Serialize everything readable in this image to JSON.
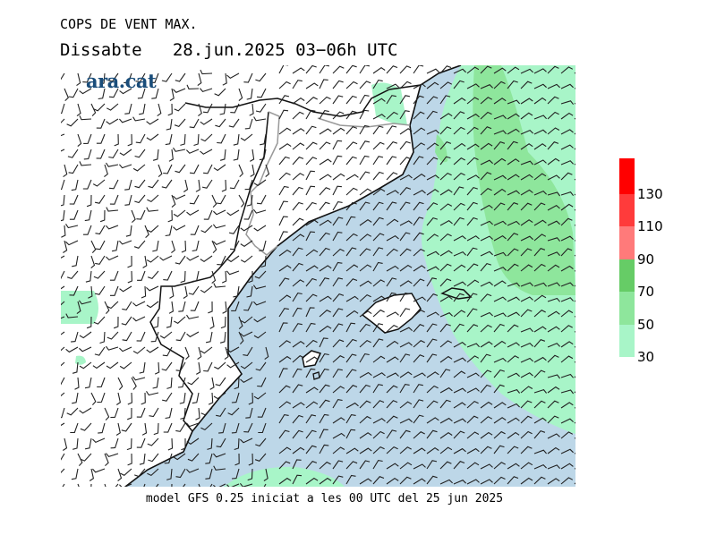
{
  "header": {
    "title": "COPS DE VENT MAX.",
    "subtitle": "Dissabte   28.jun.2025 03−06h UTC"
  },
  "logo": {
    "text": "ara.cat",
    "color": "#1a4d7a"
  },
  "footer": {
    "model_text": "model GFS 0.25 iniciat a les 00 UTC del 25 jun 2025"
  },
  "map": {
    "sea_color": "#bdd7e8",
    "land_color": "#ffffff"
  },
  "legend": {
    "items": [
      {
        "label": "30",
        "color": "#a8f5c8"
      },
      {
        "label": "50",
        "color": "#8ee69c"
      },
      {
        "label": "70",
        "color": "#66cc66"
      },
      {
        "label": "90",
        "color": "#ff7a7a"
      },
      {
        "label": "110",
        "color": "#ff3b3b"
      },
      {
        "label": "130",
        "color": "#ff0000"
      }
    ]
  }
}
